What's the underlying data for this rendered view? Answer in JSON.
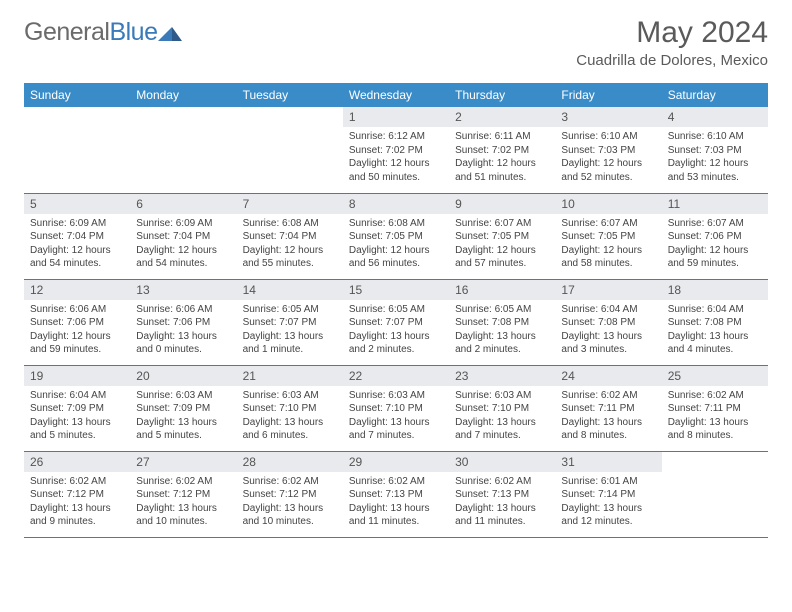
{
  "logo": {
    "general": "General",
    "blue": "Blue"
  },
  "title": "May 2024",
  "location": "Cuadrilla de Dolores, Mexico",
  "weekdays": [
    "Sunday",
    "Monday",
    "Tuesday",
    "Wednesday",
    "Thursday",
    "Friday",
    "Saturday"
  ],
  "colors": {
    "header_bg": "#3a8cc8",
    "header_fg": "#ffffff",
    "daynum_bg": "#e8eaed",
    "border": "#4a7aa8",
    "logo_general": "#6b6b6b",
    "logo_blue": "#3a7ab8",
    "title_fg": "#5a5a5a"
  },
  "weeks": [
    [
      null,
      null,
      null,
      {
        "n": "1",
        "sr": "Sunrise: 6:12 AM",
        "ss": "Sunset: 7:02 PM",
        "dl": "Daylight: 12 hours and 50 minutes."
      },
      {
        "n": "2",
        "sr": "Sunrise: 6:11 AM",
        "ss": "Sunset: 7:02 PM",
        "dl": "Daylight: 12 hours and 51 minutes."
      },
      {
        "n": "3",
        "sr": "Sunrise: 6:10 AM",
        "ss": "Sunset: 7:03 PM",
        "dl": "Daylight: 12 hours and 52 minutes."
      },
      {
        "n": "4",
        "sr": "Sunrise: 6:10 AM",
        "ss": "Sunset: 7:03 PM",
        "dl": "Daylight: 12 hours and 53 minutes."
      }
    ],
    [
      {
        "n": "5",
        "sr": "Sunrise: 6:09 AM",
        "ss": "Sunset: 7:04 PM",
        "dl": "Daylight: 12 hours and 54 minutes."
      },
      {
        "n": "6",
        "sr": "Sunrise: 6:09 AM",
        "ss": "Sunset: 7:04 PM",
        "dl": "Daylight: 12 hours and 54 minutes."
      },
      {
        "n": "7",
        "sr": "Sunrise: 6:08 AM",
        "ss": "Sunset: 7:04 PM",
        "dl": "Daylight: 12 hours and 55 minutes."
      },
      {
        "n": "8",
        "sr": "Sunrise: 6:08 AM",
        "ss": "Sunset: 7:05 PM",
        "dl": "Daylight: 12 hours and 56 minutes."
      },
      {
        "n": "9",
        "sr": "Sunrise: 6:07 AM",
        "ss": "Sunset: 7:05 PM",
        "dl": "Daylight: 12 hours and 57 minutes."
      },
      {
        "n": "10",
        "sr": "Sunrise: 6:07 AM",
        "ss": "Sunset: 7:05 PM",
        "dl": "Daylight: 12 hours and 58 minutes."
      },
      {
        "n": "11",
        "sr": "Sunrise: 6:07 AM",
        "ss": "Sunset: 7:06 PM",
        "dl": "Daylight: 12 hours and 59 minutes."
      }
    ],
    [
      {
        "n": "12",
        "sr": "Sunrise: 6:06 AM",
        "ss": "Sunset: 7:06 PM",
        "dl": "Daylight: 12 hours and 59 minutes."
      },
      {
        "n": "13",
        "sr": "Sunrise: 6:06 AM",
        "ss": "Sunset: 7:06 PM",
        "dl": "Daylight: 13 hours and 0 minutes."
      },
      {
        "n": "14",
        "sr": "Sunrise: 6:05 AM",
        "ss": "Sunset: 7:07 PM",
        "dl": "Daylight: 13 hours and 1 minute."
      },
      {
        "n": "15",
        "sr": "Sunrise: 6:05 AM",
        "ss": "Sunset: 7:07 PM",
        "dl": "Daylight: 13 hours and 2 minutes."
      },
      {
        "n": "16",
        "sr": "Sunrise: 6:05 AM",
        "ss": "Sunset: 7:08 PM",
        "dl": "Daylight: 13 hours and 2 minutes."
      },
      {
        "n": "17",
        "sr": "Sunrise: 6:04 AM",
        "ss": "Sunset: 7:08 PM",
        "dl": "Daylight: 13 hours and 3 minutes."
      },
      {
        "n": "18",
        "sr": "Sunrise: 6:04 AM",
        "ss": "Sunset: 7:08 PM",
        "dl": "Daylight: 13 hours and 4 minutes."
      }
    ],
    [
      {
        "n": "19",
        "sr": "Sunrise: 6:04 AM",
        "ss": "Sunset: 7:09 PM",
        "dl": "Daylight: 13 hours and 5 minutes."
      },
      {
        "n": "20",
        "sr": "Sunrise: 6:03 AM",
        "ss": "Sunset: 7:09 PM",
        "dl": "Daylight: 13 hours and 5 minutes."
      },
      {
        "n": "21",
        "sr": "Sunrise: 6:03 AM",
        "ss": "Sunset: 7:10 PM",
        "dl": "Daylight: 13 hours and 6 minutes."
      },
      {
        "n": "22",
        "sr": "Sunrise: 6:03 AM",
        "ss": "Sunset: 7:10 PM",
        "dl": "Daylight: 13 hours and 7 minutes."
      },
      {
        "n": "23",
        "sr": "Sunrise: 6:03 AM",
        "ss": "Sunset: 7:10 PM",
        "dl": "Daylight: 13 hours and 7 minutes."
      },
      {
        "n": "24",
        "sr": "Sunrise: 6:02 AM",
        "ss": "Sunset: 7:11 PM",
        "dl": "Daylight: 13 hours and 8 minutes."
      },
      {
        "n": "25",
        "sr": "Sunrise: 6:02 AM",
        "ss": "Sunset: 7:11 PM",
        "dl": "Daylight: 13 hours and 8 minutes."
      }
    ],
    [
      {
        "n": "26",
        "sr": "Sunrise: 6:02 AM",
        "ss": "Sunset: 7:12 PM",
        "dl": "Daylight: 13 hours and 9 minutes."
      },
      {
        "n": "27",
        "sr": "Sunrise: 6:02 AM",
        "ss": "Sunset: 7:12 PM",
        "dl": "Daylight: 13 hours and 10 minutes."
      },
      {
        "n": "28",
        "sr": "Sunrise: 6:02 AM",
        "ss": "Sunset: 7:12 PM",
        "dl": "Daylight: 13 hours and 10 minutes."
      },
      {
        "n": "29",
        "sr": "Sunrise: 6:02 AM",
        "ss": "Sunset: 7:13 PM",
        "dl": "Daylight: 13 hours and 11 minutes."
      },
      {
        "n": "30",
        "sr": "Sunrise: 6:02 AM",
        "ss": "Sunset: 7:13 PM",
        "dl": "Daylight: 13 hours and 11 minutes."
      },
      {
        "n": "31",
        "sr": "Sunrise: 6:01 AM",
        "ss": "Sunset: 7:14 PM",
        "dl": "Daylight: 13 hours and 12 minutes."
      },
      null
    ]
  ]
}
